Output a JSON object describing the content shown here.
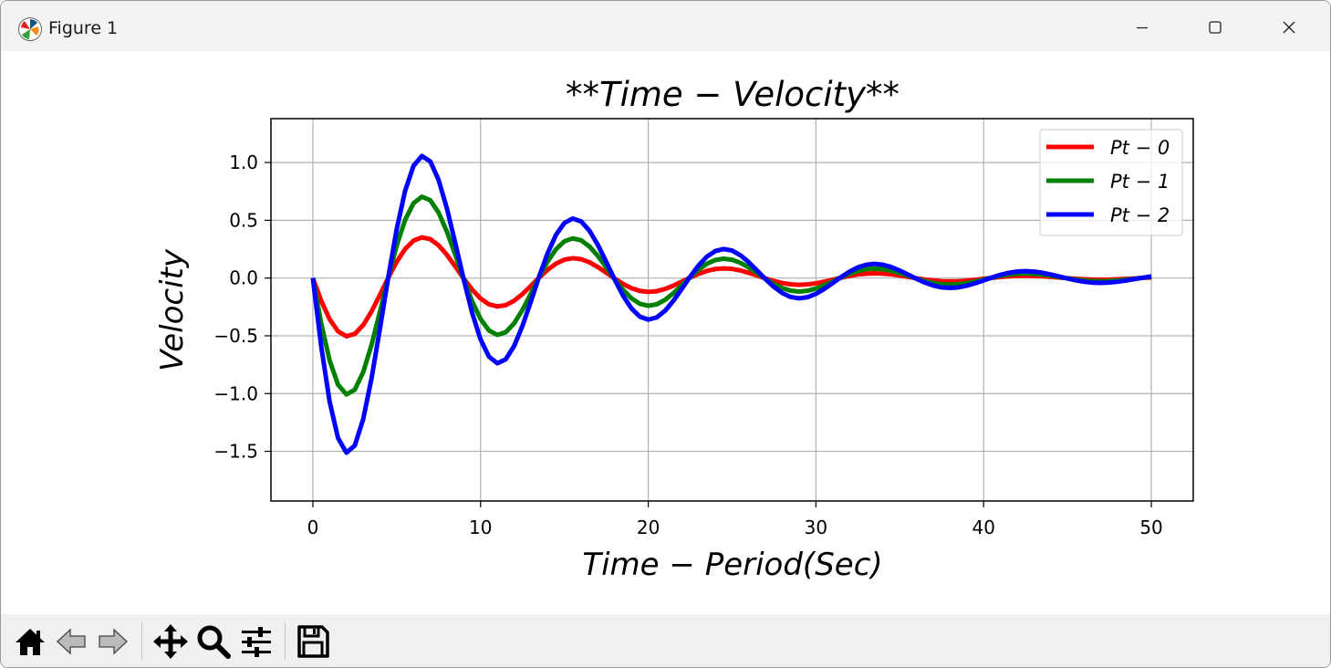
{
  "window": {
    "title": "Figure 1",
    "icons": {
      "app": "matplotlib-icon",
      "minimize": "minimize-icon",
      "maximize": "maximize-icon",
      "close": "close-icon"
    }
  },
  "toolbar": {
    "icons": [
      "home-icon",
      "back-arrow-icon",
      "forward-arrow-icon",
      "pan-icon",
      "zoom-icon",
      "subplots-config-icon",
      "save-icon"
    ]
  },
  "chart_data": {
    "type": "line",
    "title": "$**Time-Velocity**$",
    "title_display": "**Time − Velocity**",
    "xlabel": "Time − Period(Sec)",
    "ylabel": "Velocity",
    "xlim": [
      -2.5,
      52.5
    ],
    "ylim": [
      -1.93,
      1.38
    ],
    "xticks": [
      0,
      10,
      20,
      30,
      40,
      50
    ],
    "xtick_labels": [
      "0",
      "10",
      "20",
      "30",
      "40",
      "50"
    ],
    "yticks": [
      1.0,
      0.5,
      0.0,
      -0.5,
      -1.0,
      -1.5
    ],
    "ytick_labels": [
      "1.0",
      "0.5",
      "0.0",
      "−0.5",
      "−1.0",
      "−1.5"
    ],
    "grid": true,
    "legend_position": "top-right",
    "x": {
      "start": 0,
      "stop": 50,
      "count": 101
    },
    "model": "y = -A * sin(0.7 * x) * exp(-0.08 * x)",
    "series": [
      {
        "name": "Pt − 0",
        "color": "#ff0000",
        "amplitude": 0.6
      },
      {
        "name": "Pt − 1",
        "color": "#008000",
        "amplitude": 1.2
      },
      {
        "name": "Pt − 2",
        "color": "#0000ff",
        "amplitude": 1.8
      }
    ]
  }
}
